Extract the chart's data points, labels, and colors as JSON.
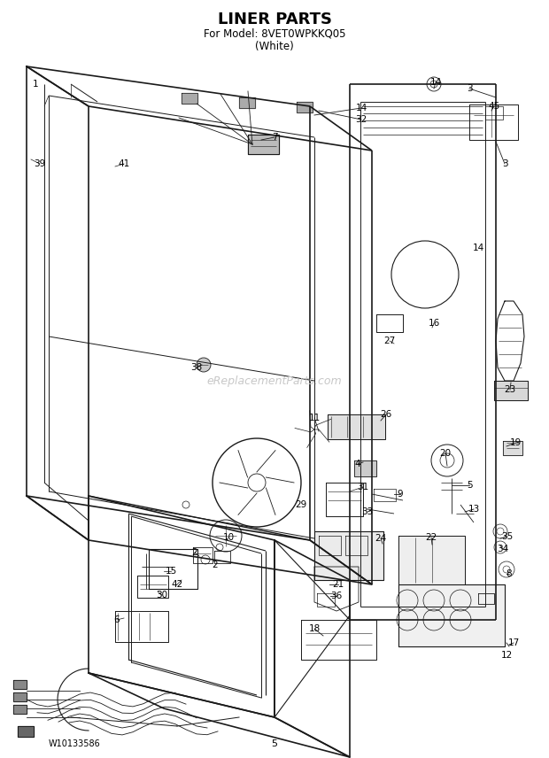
{
  "title_line1": "LINER PARTS",
  "title_line2": "For Model: 8VET0WPKKQ05",
  "title_line3": "(White)",
  "footer_left": "W10133586",
  "footer_center": "5",
  "bg_color": "#ffffff",
  "lc": "#1a1a1a",
  "watermark": "eReplacementParts.com",
  "watermark_color": "#c8c8c8"
}
